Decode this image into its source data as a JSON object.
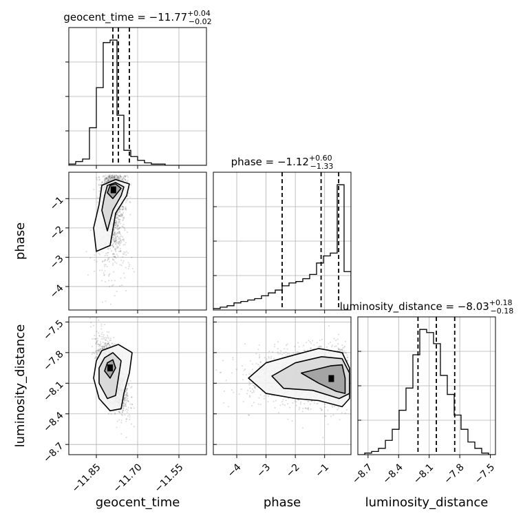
{
  "chart_data": {
    "type": "corner",
    "parameters": [
      {
        "name": "geocent_time",
        "range": [
          -11.95,
          -11.45
        ],
        "ticks": [
          -11.85,
          -11.7,
          -11.55
        ],
        "tick_labels": [
          "−11.85",
          "−11.70",
          "−11.55"
        ],
        "title": {
          "prefix": "geocent_time = −11.77",
          "sup": "+0.04",
          "sub": "−0.02"
        },
        "quantiles": [
          -11.79,
          -11.77,
          -11.73
        ],
        "histogram": [
          1,
          3,
          5,
          30,
          62,
          98,
          100,
          40,
          12,
          7,
          4,
          2,
          1,
          1,
          0,
          0,
          0,
          0,
          0,
          0
        ]
      },
      {
        "name": "phase",
        "range": [
          -4.8,
          -0.1
        ],
        "ticks": [
          -4,
          -3,
          -2,
          -1
        ],
        "tick_labels": [
          "−4",
          "−3",
          "−2",
          "−1"
        ],
        "title": {
          "prefix": "phase = −1.12",
          "sup": "+0.60",
          "sub": "−1.33"
        },
        "quantiles": [
          -2.45,
          -1.12,
          -0.52
        ],
        "histogram": [
          1,
          2,
          3,
          5,
          6,
          7,
          8,
          10,
          12,
          14,
          17,
          19,
          20,
          22,
          25,
          33,
          38,
          40,
          88,
          27
        ]
      },
      {
        "name": "luminosity_distance",
        "range": [
          -8.8,
          -7.45
        ],
        "ticks": [
          -8.7,
          -8.4,
          -8.1,
          -7.8,
          -7.5
        ],
        "tick_labels": [
          "−8.7",
          "−8.4",
          "−8.1",
          "−7.8",
          "−7.5"
        ],
        "title": {
          "prefix": "luminosity_distance = −8.03",
          "sup": "+0.18",
          "sub": "−0.18"
        },
        "quantiles": [
          -8.21,
          -8.03,
          -7.85
        ],
        "histogram": [
          0,
          1,
          2,
          4,
          9,
          16,
          28,
          42,
          63,
          79,
          77,
          70,
          50,
          38,
          25,
          16,
          8,
          4,
          1,
          0
        ]
      }
    ],
    "contours": [
      {
        "x_param": "geocent_time",
        "y_param": "phase",
        "levels": [
          [
            [
              -11.83,
              -0.55
            ],
            [
              -11.78,
              -0.35
            ],
            [
              -11.73,
              -0.5
            ],
            [
              -11.74,
              -0.9
            ],
            [
              -11.78,
              -1.5
            ],
            [
              -11.8,
              -2.6
            ],
            [
              -11.85,
              -2.8
            ],
            [
              -11.86,
              -2.0
            ],
            [
              -11.84,
              -1.2
            ]
          ],
          [
            [
              -11.81,
              -0.55
            ],
            [
              -11.78,
              -0.45
            ],
            [
              -11.75,
              -0.6
            ],
            [
              -11.76,
              -0.9
            ],
            [
              -11.79,
              -1.4
            ],
            [
              -11.81,
              -2.1
            ],
            [
              -11.83,
              -1.4
            ],
            [
              -11.82,
              -0.9
            ]
          ],
          [
            [
              -11.8,
              -0.55
            ],
            [
              -11.78,
              -0.5
            ],
            [
              -11.76,
              -0.65
            ],
            [
              -11.79,
              -1.0
            ],
            [
              -11.81,
              -0.8
            ]
          ]
        ]
      },
      {
        "x_param": "geocent_time",
        "y_param": "luminosity_distance",
        "levels": [
          [
            [
              -11.83,
              -7.78
            ],
            [
              -11.77,
              -7.72
            ],
            [
              -11.72,
              -7.8
            ],
            [
              -11.73,
              -8.0
            ],
            [
              -11.75,
              -8.2
            ],
            [
              -11.76,
              -8.35
            ],
            [
              -11.8,
              -8.37
            ],
            [
              -11.84,
              -8.25
            ],
            [
              -11.86,
              -8.05
            ],
            [
              -11.85,
              -7.88
            ]
          ],
          [
            [
              -11.82,
              -7.85
            ],
            [
              -11.79,
              -7.8
            ],
            [
              -11.76,
              -7.88
            ],
            [
              -11.77,
              -8.05
            ],
            [
              -11.78,
              -8.22
            ],
            [
              -11.81,
              -8.25
            ],
            [
              -11.84,
              -8.1
            ],
            [
              -11.84,
              -7.95
            ]
          ],
          [
            [
              -11.81,
              -7.9
            ],
            [
              -11.79,
              -7.87
            ],
            [
              -11.78,
              -7.95
            ],
            [
              -11.8,
              -8.05
            ],
            [
              -11.82,
              -7.98
            ]
          ]
        ]
      },
      {
        "x_param": "phase",
        "y_param": "luminosity_distance",
        "levels": [
          [
            [
              -3.6,
              -8.05
            ],
            [
              -3.0,
              -7.9
            ],
            [
              -2.0,
              -7.82
            ],
            [
              -1.2,
              -7.76
            ],
            [
              -0.4,
              -7.8
            ],
            [
              -0.15,
              -7.95
            ],
            [
              -0.15,
              -8.25
            ],
            [
              -0.4,
              -8.33
            ],
            [
              -1.2,
              -8.27
            ],
            [
              -2.0,
              -8.25
            ],
            [
              -3.0,
              -8.2
            ]
          ],
          [
            [
              -2.8,
              -8.03
            ],
            [
              -2.0,
              -7.9
            ],
            [
              -1.1,
              -7.84
            ],
            [
              -0.4,
              -7.86
            ],
            [
              -0.15,
              -8.0
            ],
            [
              -0.15,
              -8.2
            ],
            [
              -0.5,
              -8.25
            ],
            [
              -1.4,
              -8.17
            ],
            [
              -2.4,
              -8.15
            ]
          ],
          [
            [
              -1.8,
              -8.0
            ],
            [
              -0.8,
              -7.93
            ],
            [
              -0.4,
              -7.92
            ],
            [
              -0.3,
              -8.05
            ],
            [
              -0.3,
              -8.2
            ],
            [
              -0.6,
              -8.18
            ],
            [
              -1.2,
              -8.1
            ]
          ]
        ]
      }
    ]
  }
}
